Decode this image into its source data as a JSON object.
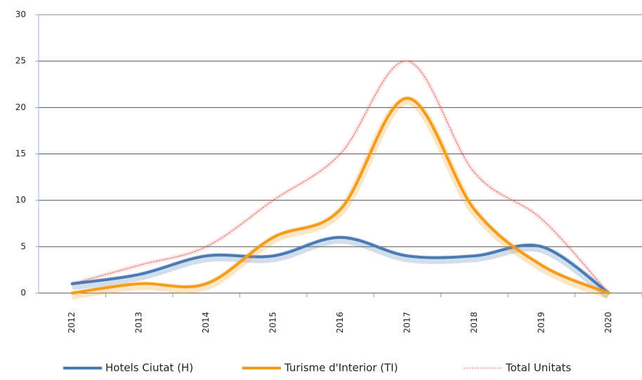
{
  "chart_data": {
    "type": "line",
    "categories": [
      "2012",
      "2013",
      "2014",
      "2015",
      "2016",
      "2017",
      "2018",
      "2019",
      "2020"
    ],
    "series": [
      {
        "name": "Hotels Ciutat (H)",
        "color": "#4a7ab5",
        "values": [
          1,
          2,
          4,
          4,
          6,
          4,
          4,
          5,
          0
        ]
      },
      {
        "name": "Turisme d'Interior (TI)",
        "color": "#f59c1a",
        "values": [
          0,
          1,
          1,
          6,
          9,
          21,
          9,
          3,
          0
        ]
      },
      {
        "name": "Total Unitats",
        "color": "#e8605a",
        "values": [
          1,
          3,
          5,
          10,
          15,
          25,
          13,
          8,
          0
        ]
      }
    ],
    "ylim": [
      0,
      30
    ],
    "yticks": [
      0,
      5,
      10,
      15,
      20,
      25,
      30
    ],
    "grid": true
  }
}
